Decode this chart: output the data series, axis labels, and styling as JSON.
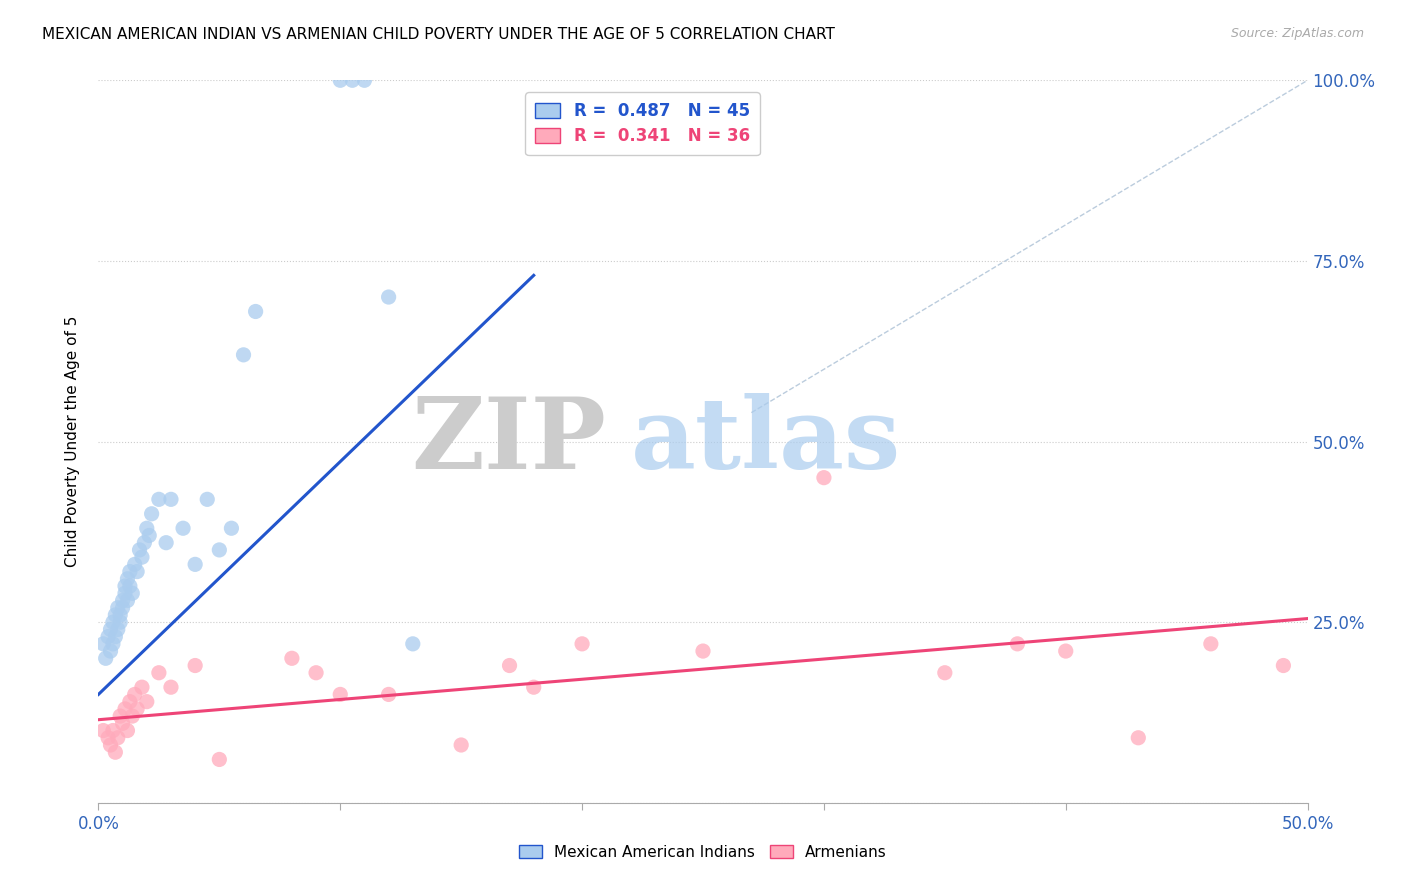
{
  "title": "MEXICAN AMERICAN INDIAN VS ARMENIAN CHILD POVERTY UNDER THE AGE OF 5 CORRELATION CHART",
  "source": "Source: ZipAtlas.com",
  "ylabel": "Child Poverty Under the Age of 5",
  "xlim": [
    0.0,
    0.5
  ],
  "ylim": [
    0.0,
    1.0
  ],
  "legend_blue_r": "0.487",
  "legend_blue_n": "45",
  "legend_pink_r": "0.341",
  "legend_pink_n": "36",
  "legend_label_blue": "Mexican American Indians",
  "legend_label_pink": "Armenians",
  "blue_color": "#aaccee",
  "pink_color": "#ffaabb",
  "blue_trend_color": "#2255cc",
  "pink_trend_color": "#ee4477",
  "blue_scatter_x": [
    0.002,
    0.003,
    0.004,
    0.005,
    0.005,
    0.006,
    0.006,
    0.007,
    0.007,
    0.008,
    0.008,
    0.009,
    0.009,
    0.01,
    0.01,
    0.011,
    0.011,
    0.012,
    0.012,
    0.013,
    0.013,
    0.014,
    0.015,
    0.016,
    0.017,
    0.018,
    0.019,
    0.02,
    0.021,
    0.022,
    0.025,
    0.028,
    0.03,
    0.035,
    0.04,
    0.045,
    0.05,
    0.055,
    0.06,
    0.065,
    0.1,
    0.105,
    0.11,
    0.12,
    0.13
  ],
  "blue_scatter_y": [
    0.22,
    0.2,
    0.23,
    0.21,
    0.24,
    0.22,
    0.25,
    0.23,
    0.26,
    0.24,
    0.27,
    0.26,
    0.25,
    0.28,
    0.27,
    0.3,
    0.29,
    0.31,
    0.28,
    0.32,
    0.3,
    0.29,
    0.33,
    0.32,
    0.35,
    0.34,
    0.36,
    0.38,
    0.37,
    0.4,
    0.42,
    0.36,
    0.42,
    0.38,
    0.33,
    0.42,
    0.35,
    0.38,
    0.62,
    0.68,
    1.0,
    1.0,
    1.0,
    0.7,
    0.22
  ],
  "pink_scatter_x": [
    0.002,
    0.004,
    0.005,
    0.006,
    0.007,
    0.008,
    0.009,
    0.01,
    0.011,
    0.012,
    0.013,
    0.014,
    0.015,
    0.016,
    0.018,
    0.02,
    0.025,
    0.03,
    0.04,
    0.05,
    0.08,
    0.09,
    0.1,
    0.12,
    0.15,
    0.17,
    0.18,
    0.2,
    0.25,
    0.3,
    0.35,
    0.38,
    0.4,
    0.43,
    0.46,
    0.49
  ],
  "pink_scatter_y": [
    0.1,
    0.09,
    0.08,
    0.1,
    0.07,
    0.09,
    0.12,
    0.11,
    0.13,
    0.1,
    0.14,
    0.12,
    0.15,
    0.13,
    0.16,
    0.14,
    0.18,
    0.16,
    0.19,
    0.06,
    0.2,
    0.18,
    0.15,
    0.15,
    0.08,
    0.19,
    0.16,
    0.22,
    0.21,
    0.45,
    0.18,
    0.22,
    0.21,
    0.09,
    0.22,
    0.19
  ],
  "blue_trend_x": [
    0.0,
    0.18
  ],
  "blue_trend_y": [
    0.15,
    0.73
  ],
  "pink_trend_x": [
    0.0,
    0.5
  ],
  "pink_trend_y": [
    0.115,
    0.255
  ],
  "ref_line_x": [
    0.27,
    0.5
  ],
  "ref_line_y": [
    0.54,
    1.0
  ]
}
